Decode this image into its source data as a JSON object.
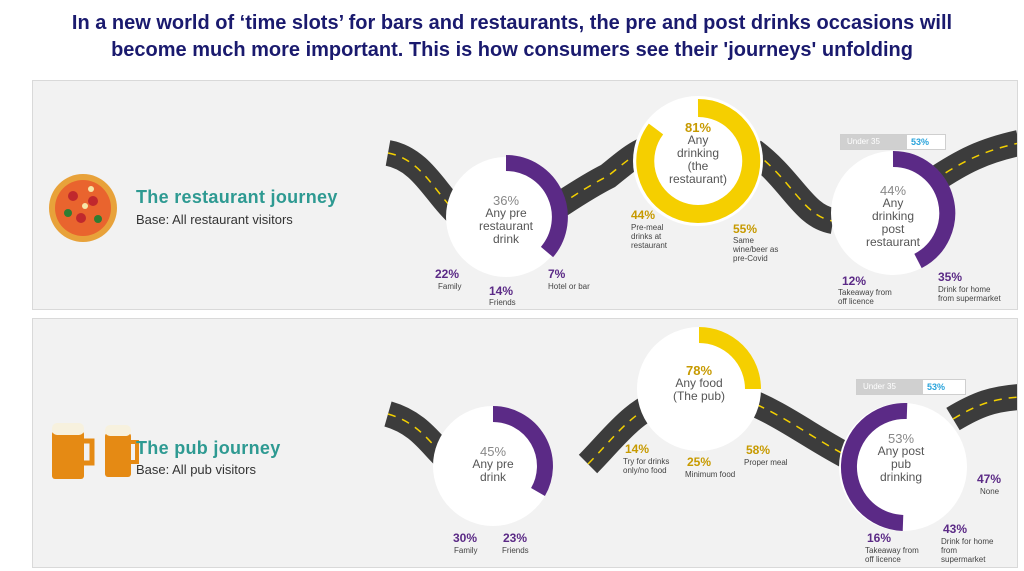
{
  "title_line1": "In a new world of ‘time slots’ for bars and restaurants, the pre and post drinks occasions will",
  "title_line2": "become much more important.  This is how consumers see their 'journeys' unfolding",
  "colors": {
    "purple": "#5b2a86",
    "gold": "#f5cf00",
    "teal": "#2e9a92",
    "road": "#3c3c3c"
  },
  "restaurant": {
    "icon": "pizza-icon",
    "title": "The restaurant journey",
    "base": "Base:  All restaurant visitors",
    "pre": {
      "pct": "36%",
      "l1": "Any pre",
      "l2": "restaurant",
      "l3": "drink",
      "family_pct": "22%",
      "family": "Family",
      "friends_pct": "14%",
      "friends": "Friends",
      "hotel_pct": "7%",
      "hotel": "Hotel or bar"
    },
    "mid": {
      "pct": "81%",
      "l1": "Any",
      "l2": "drinking",
      "l3": "(the",
      "l4": "restaurant)",
      "a_pct": "44%",
      "a1": "Pre-meal",
      "a2": "drinks at",
      "a3": "restaurant",
      "b_pct": "55%",
      "b1": "Same",
      "b2": "wine/beer as",
      "b3": "pre-Covid"
    },
    "post": {
      "pct": "44%",
      "l1": "Any",
      "l2": "drinking",
      "l3": "post",
      "l4": "restaurant",
      "badge_label": "Under 35",
      "badge_value": "53%",
      "a_pct": "12%",
      "a1": "Takeaway from",
      "a2": "off licence",
      "b_pct": "35%",
      "b1": "Drink for home",
      "b2": "from supermarket"
    }
  },
  "pub": {
    "icon": "beer-mugs-icon",
    "title": "The pub journey",
    "base": "Base:  All pub visitors",
    "pre": {
      "pct": "45%",
      "l1": "Any pre",
      "l2": "drink",
      "family_pct": "30%",
      "family": "Family",
      "friends_pct": "23%",
      "friends": "Friends"
    },
    "mid": {
      "pct": "78%",
      "l1": "Any food",
      "l2": "(The pub)",
      "a_pct": "14%",
      "a1": "Try for drinks",
      "a2": "only/no food",
      "b_pct": "25%",
      "b1": "Minimum food",
      "c_pct": "58%",
      "c1": "Proper meal"
    },
    "post": {
      "pct": "53%",
      "l1": "Any post",
      "l2": "pub",
      "l3": "drinking",
      "badge_label": "Under 35",
      "badge_value": "53%",
      "none_pct": "47%",
      "none": "None",
      "a_pct": "16%",
      "a1": "Takeaway from",
      "a2": "off licence",
      "b_pct": "43%",
      "b1": "Drink for home",
      "b2": "from",
      "b3": "supermarket"
    }
  }
}
